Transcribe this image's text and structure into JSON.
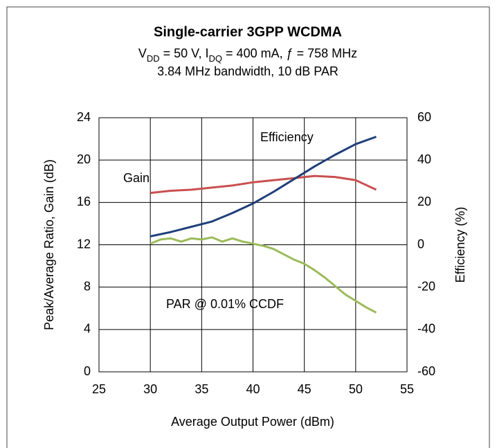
{
  "chart_data": {
    "type": "line",
    "title": "Single-carrier 3GPP WCDMA",
    "subtitle": [
      [
        {
          "text": "V"
        },
        {
          "text": "DD",
          "sub": true
        },
        {
          "text": " = 50 V, I"
        },
        {
          "text": "DQ",
          "sub": true
        },
        {
          "text": " = 400 mA, ƒ = 758 MHz"
        }
      ],
      [
        {
          "text": "3.84 MHz bandwidth, 10 dB PAR"
        }
      ]
    ],
    "xlabel": "Average Output Power (dBm)",
    "ylabel": "Peak/Average Ratio, Gain (dB)",
    "y2label": "Efficiency (%)",
    "xlim": [
      25,
      55
    ],
    "xticks": [
      25,
      30,
      35,
      40,
      45,
      50,
      55
    ],
    "ylim": [
      0,
      24
    ],
    "yticks": [
      0,
      4,
      8,
      12,
      16,
      20,
      24
    ],
    "y2lim": [
      -60,
      60
    ],
    "y2ticks": [
      -60,
      -40,
      -20,
      0,
      20,
      40,
      60
    ],
    "grid": true,
    "annotations": [
      "Efficiency",
      "Gain",
      "PAR  @ 0.01% CCDF"
    ],
    "series": [
      {
        "name": "Gain",
        "color": "#c9504f",
        "x": [
          30,
          32,
          34,
          36,
          38,
          40,
          42,
          44,
          46,
          48,
          50,
          52
        ],
        "values": [
          16.9,
          17.1,
          17.2,
          17.4,
          17.6,
          17.9,
          18.1,
          18.3,
          18.5,
          18.4,
          18.1,
          17.2
        ]
      },
      {
        "name": "Efficiency",
        "color": "#1f3f7a",
        "axis": "y2",
        "x": [
          30,
          32,
          34,
          36,
          38,
          40,
          42,
          44,
          46,
          48,
          50,
          52
        ],
        "values": [
          4,
          6,
          8.5,
          11,
          15,
          19.5,
          25,
          31,
          37,
          42.5,
          47.5,
          51
        ]
      },
      {
        "name": "PAR",
        "color": "#9bbb59",
        "x": [
          30,
          31,
          32,
          33,
          34,
          35,
          36,
          37,
          38,
          39,
          40,
          41,
          42,
          43,
          44,
          45,
          46,
          47,
          48,
          49,
          50,
          51,
          52
        ],
        "values": [
          12.1,
          12.5,
          12.6,
          12.3,
          12.6,
          12.5,
          12.7,
          12.3,
          12.6,
          12.3,
          12.1,
          11.9,
          11.6,
          11.1,
          10.6,
          10.2,
          9.6,
          8.9,
          8.1,
          7.3,
          6.7,
          6.1,
          5.6
        ]
      }
    ]
  }
}
